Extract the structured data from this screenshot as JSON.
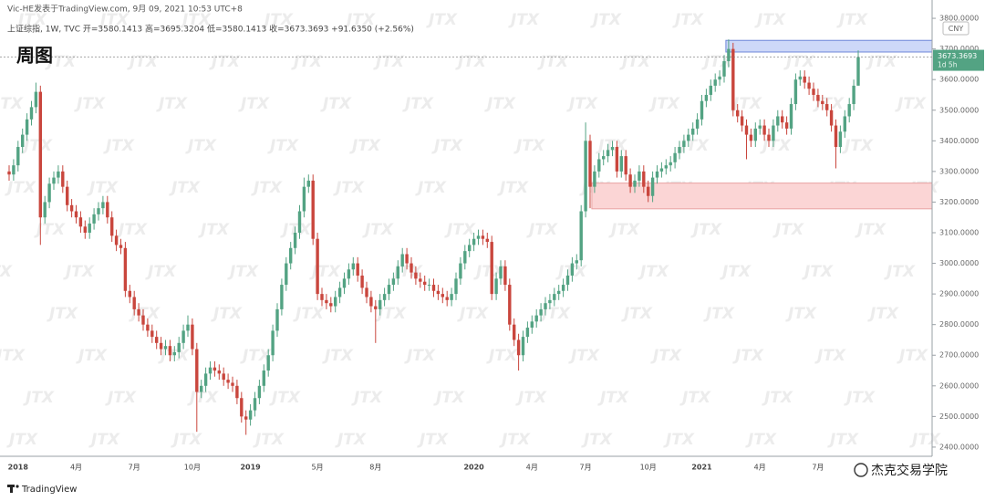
{
  "chart_data": {
    "type": "candlestick",
    "title": "周图",
    "author_line": "Vic-HE发表于TradingView.com, 9月 09, 2021 10:53 UTC+8",
    "symbol_line": "上证综指, 1W, TVC  开=3580.1413  高=3695.3204  低=3580.1413  收=3673.3693  +91.6350 (+2.56%)",
    "currency": "CNY",
    "last_price_label": "3673.3693",
    "countdown": "1d 5h",
    "up_color": "#53a383",
    "down_color": "#c9463d",
    "categories": [
      null,
      null,
      "2018",
      null,
      null,
      null,
      null,
      null,
      null,
      null,
      null,
      null,
      null,
      null,
      null,
      "4月",
      null,
      null,
      null,
      null,
      null,
      null,
      null,
      null,
      null,
      null,
      null,
      null,
      "7月",
      null,
      null,
      null,
      null,
      null,
      null,
      null,
      null,
      null,
      null,
      null,
      null,
      "10月",
      null,
      null,
      null,
      null,
      null,
      null,
      null,
      null,
      null,
      null,
      null,
      null,
      "2019",
      null,
      null,
      null,
      null,
      null,
      null,
      null,
      null,
      null,
      null,
      null,
      null,
      null,
      null,
      "5月",
      null,
      null,
      null,
      null,
      null,
      null,
      null,
      null,
      null,
      null,
      null,
      null,
      "8月",
      null,
      null,
      null,
      null,
      null,
      null,
      null,
      null,
      null,
      null,
      null,
      null,
      null,
      null,
      null,
      null,
      null,
      null,
      null,
      null,
      null,
      "2020",
      null,
      null,
      null,
      null,
      null,
      null,
      null,
      null,
      null,
      null,
      null,
      null,
      "4月",
      null,
      null,
      null,
      null,
      null,
      null,
      null,
      null,
      null,
      null,
      null,
      "7月",
      null,
      null,
      null,
      null,
      null,
      null,
      null,
      null,
      null,
      null,
      null,
      null,
      null,
      "10月",
      null,
      null,
      null,
      null,
      null,
      null,
      null,
      null,
      null,
      null,
      null,
      "2021",
      null,
      null,
      null,
      null,
      null,
      null,
      null,
      null,
      null,
      null,
      null,
      null,
      "4月",
      null,
      null,
      null,
      null,
      null,
      null,
      null,
      null,
      null,
      null,
      null,
      null,
      "7月",
      null,
      null,
      null,
      null,
      null,
      null,
      null,
      null,
      null
    ],
    "open": [
      3300,
      3290,
      3320,
      3380,
      3420,
      3470,
      3510,
      3560,
      3150,
      3200,
      3260,
      3280,
      3300,
      3250,
      3190,
      3170,
      3150,
      3120,
      3100,
      3130,
      3160,
      3180,
      3200,
      3150,
      3090,
      3060,
      3050,
      2910,
      2890,
      2850,
      2830,
      2800,
      2780,
      2760,
      2740,
      2720,
      2730,
      2700,
      2710,
      2740,
      2780,
      2800,
      2720,
      2580,
      2600,
      2640,
      2660,
      2650,
      2640,
      2620,
      2610,
      2600,
      2560,
      2500,
      2490,
      2520,
      2560,
      2600,
      2650,
      2700,
      2780,
      2850,
      2930,
      3000,
      3050,
      3100,
      3170,
      3250,
      3270,
      3080,
      2900,
      2880,
      2870,
      2860,
      2890,
      2920,
      2950,
      2980,
      3000,
      2960,
      2920,
      2890,
      2860,
      2850,
      2880,
      2900,
      2930,
      2950,
      2990,
      3030,
      3000,
      2970,
      2950,
      2940,
      2930,
      2930,
      2910,
      2900,
      2890,
      2880,
      2900,
      2950,
      3000,
      3040,
      3060,
      3080,
      3090,
      3080,
      3070,
      2900,
      2950,
      2990,
      2930,
      2800,
      2750,
      2700,
      2760,
      2790,
      2810,
      2830,
      2850,
      2870,
      2880,
      2900,
      2910,
      2930,
      2960,
      3000,
      3010,
      3170,
      3400,
      3250,
      3300,
      3340,
      3350,
      3370,
      3380,
      3300,
      3350,
      3290,
      3250,
      3270,
      3300,
      3250,
      3220,
      3280,
      3300,
      3310,
      3320,
      3330,
      3360,
      3380,
      3400,
      3420,
      3440,
      3470,
      3530,
      3550,
      3580,
      3600,
      3610,
      3660,
      3700,
      3500,
      3480,
      3450,
      3420,
      3400,
      3440,
      3450,
      3420,
      3400,
      3450,
      3480,
      3460,
      3440,
      3520,
      3600,
      3610,
      3590,
      3570,
      3550,
      3530,
      3520,
      3500,
      3450,
      3380,
      3430,
      3480,
      3520,
      3580.1413
    ],
    "high": [
      3320,
      3340,
      3400,
      3440,
      3490,
      3530,
      3590,
      3580,
      3220,
      3280,
      3300,
      3320,
      3320,
      3270,
      3210,
      3190,
      3170,
      3140,
      3150,
      3180,
      3200,
      3220,
      3220,
      3170,
      3110,
      3080,
      3070,
      2930,
      2910,
      2870,
      2850,
      2820,
      2800,
      2780,
      2760,
      2750,
      2750,
      2730,
      2760,
      2800,
      2830,
      2820,
      2740,
      2620,
      2660,
      2680,
      2680,
      2670,
      2660,
      2640,
      2630,
      2620,
      2580,
      2520,
      2540,
      2580,
      2620,
      2670,
      2720,
      2800,
      2870,
      2950,
      3020,
      3070,
      3120,
      3190,
      3280,
      3290,
      3290,
      3100,
      2920,
      2900,
      2890,
      2910,
      2940,
      2970,
      3000,
      3020,
      3020,
      2980,
      2940,
      2910,
      2880,
      2900,
      2920,
      2950,
      2970,
      3010,
      3050,
      3050,
      3020,
      2990,
      2970,
      2960,
      2950,
      2950,
      2930,
      2920,
      2910,
      2920,
      2970,
      3020,
      3060,
      3080,
      3100,
      3110,
      3110,
      3100,
      3090,
      2970,
      3010,
      3010,
      2950,
      2820,
      2770,
      2780,
      2810,
      2830,
      2850,
      2870,
      2890,
      2900,
      2920,
      2930,
      2950,
      2980,
      3020,
      3030,
      3190,
      3460,
      3420,
      3320,
      3360,
      3370,
      3390,
      3400,
      3400,
      3370,
      3370,
      3310,
      3290,
      3320,
      3320,
      3270,
      3300,
      3320,
      3330,
      3340,
      3350,
      3380,
      3400,
      3420,
      3440,
      3460,
      3490,
      3550,
      3570,
      3600,
      3620,
      3630,
      3680,
      3731,
      3720,
      3520,
      3500,
      3470,
      3440,
      3460,
      3470,
      3470,
      3440,
      3470,
      3500,
      3500,
      3480,
      3540,
      3620,
      3630,
      3630,
      3610,
      3590,
      3570,
      3550,
      3540,
      3520,
      3470,
      3450,
      3500,
      3540,
      3600,
      3695.3204
    ],
    "low": [
      3270,
      3270,
      3300,
      3360,
      3400,
      3450,
      3490,
      3060,
      3130,
      3180,
      3240,
      3260,
      3230,
      3170,
      3150,
      3130,
      3100,
      3080,
      3080,
      3110,
      3140,
      3160,
      3130,
      3070,
      3040,
      3030,
      2890,
      2870,
      2830,
      2810,
      2780,
      2760,
      2740,
      2720,
      2700,
      2700,
      2680,
      2680,
      2690,
      2720,
      2760,
      2700,
      2450,
      2560,
      2580,
      2620,
      2630,
      2620,
      2600,
      2590,
      2580,
      2540,
      2480,
      2440,
      2470,
      2500,
      2540,
      2580,
      2630,
      2680,
      2760,
      2830,
      2910,
      2980,
      3030,
      3080,
      3150,
      3230,
      3060,
      2880,
      2860,
      2850,
      2840,
      2840,
      2870,
      2900,
      2930,
      2960,
      2940,
      2900,
      2870,
      2840,
      2740,
      2830,
      2860,
      2880,
      2910,
      2930,
      2970,
      2980,
      2950,
      2930,
      2920,
      2910,
      2910,
      2890,
      2880,
      2870,
      2860,
      2860,
      2880,
      2930,
      2980,
      3020,
      3040,
      3060,
      3060,
      3050,
      2880,
      2880,
      2930,
      2910,
      2780,
      2730,
      2650,
      2680,
      2740,
      2770,
      2790,
      2810,
      2830,
      2850,
      2860,
      2880,
      2890,
      2910,
      2940,
      2980,
      2990,
      3150,
      3180,
      3230,
      3280,
      3320,
      3330,
      3350,
      3280,
      3280,
      3270,
      3230,
      3230,
      3250,
      3230,
      3200,
      3200,
      3260,
      3280,
      3290,
      3300,
      3310,
      3340,
      3360,
      3380,
      3400,
      3420,
      3450,
      3510,
      3530,
      3560,
      3580,
      3590,
      3640,
      3480,
      3460,
      3430,
      3340,
      3380,
      3380,
      3420,
      3400,
      3380,
      3380,
      3430,
      3440,
      3420,
      3420,
      3500,
      3580,
      3570,
      3550,
      3530,
      3510,
      3500,
      3480,
      3430,
      3310,
      3360,
      3410,
      3460,
      3500,
      3580.1413
    ],
    "close": [
      3290,
      3320,
      3380,
      3420,
      3470,
      3510,
      3560,
      3150,
      3200,
      3260,
      3280,
      3300,
      3250,
      3190,
      3170,
      3150,
      3120,
      3100,
      3130,
      3160,
      3180,
      3200,
      3150,
      3090,
      3060,
      3050,
      2910,
      2890,
      2850,
      2830,
      2800,
      2780,
      2760,
      2740,
      2720,
      2730,
      2700,
      2710,
      2740,
      2780,
      2800,
      2720,
      2580,
      2600,
      2640,
      2660,
      2650,
      2640,
      2620,
      2610,
      2600,
      2560,
      2500,
      2490,
      2520,
      2560,
      2600,
      2650,
      2700,
      2780,
      2850,
      2930,
      3000,
      3050,
      3100,
      3170,
      3250,
      3270,
      3080,
      2900,
      2880,
      2870,
      2860,
      2890,
      2920,
      2950,
      2980,
      3000,
      2960,
      2920,
      2890,
      2860,
      2850,
      2880,
      2900,
      2930,
      2950,
      2990,
      3030,
      3000,
      2970,
      2950,
      2940,
      2930,
      2930,
      2910,
      2900,
      2890,
      2880,
      2900,
      2950,
      3000,
      3040,
      3060,
      3080,
      3090,
      3080,
      3070,
      2900,
      2950,
      2990,
      2930,
      2800,
      2750,
      2700,
      2760,
      2790,
      2810,
      2830,
      2850,
      2870,
      2880,
      2900,
      2910,
      2930,
      2960,
      3000,
      3010,
      3170,
      3400,
      3250,
      3300,
      3340,
      3350,
      3370,
      3380,
      3300,
      3350,
      3290,
      3250,
      3270,
      3300,
      3250,
      3220,
      3280,
      3300,
      3310,
      3320,
      3330,
      3360,
      3380,
      3400,
      3420,
      3440,
      3470,
      3530,
      3550,
      3580,
      3600,
      3610,
      3660,
      3700,
      3500,
      3480,
      3450,
      3420,
      3400,
      3440,
      3450,
      3420,
      3400,
      3450,
      3480,
      3460,
      3440,
      3520,
      3600,
      3610,
      3590,
      3570,
      3550,
      3530,
      3520,
      3500,
      3450,
      3380,
      3430,
      3480,
      3520,
      3580,
      3673.3693
    ],
    "zones": [
      {
        "low": 3690,
        "high": 3728,
        "start": 161,
        "color": "#cdd8f8",
        "border": "#6d86d9"
      },
      {
        "low": 3178,
        "high": 3262,
        "start": 131,
        "color": "#fbd5d5",
        "border": "#e9a1a1"
      }
    ],
    "ylim": [
      2370,
      3830
    ],
    "yticks": [
      {
        "value": 2400,
        "label": "2400.0000"
      },
      {
        "value": 2500,
        "label": "2500.0000"
      },
      {
        "value": 2600,
        "label": "2600.0000"
      },
      {
        "value": 2700,
        "label": "2700.0000"
      },
      {
        "value": 2800,
        "label": "2800.0000"
      },
      {
        "value": 2900,
        "label": "2900.0000"
      },
      {
        "value": 3000,
        "label": "3000.0000"
      },
      {
        "value": 3100,
        "label": "3100.0000"
      },
      {
        "value": 3200,
        "label": "3200.0000"
      },
      {
        "value": 3300,
        "label": "3300.0000"
      },
      {
        "value": 3400,
        "label": "3400.0000"
      },
      {
        "value": 3500,
        "label": "3500.0000"
      },
      {
        "value": 3600,
        "label": "3600.0000"
      },
      {
        "value": 3700,
        "label": "3700.0000"
      },
      {
        "value": 3800,
        "label": "3800.0000"
      }
    ]
  },
  "watermark": "JTX",
  "footer": {
    "platform": "TradingView",
    "signature": "杰克交易学院"
  }
}
